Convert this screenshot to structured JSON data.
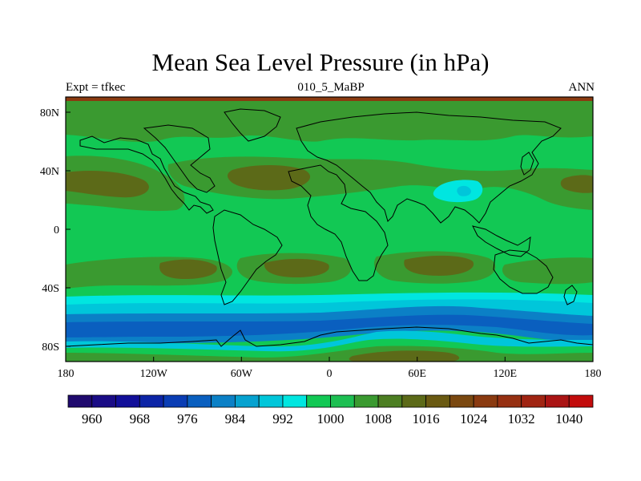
{
  "title": "Mean Sea Level Pressure (in hPa)",
  "subtitle_left": "Expt = tfkec",
  "subtitle_center": "010_5_MaBP",
  "subtitle_right": "ANN",
  "x_ticks": [
    "180",
    "120W",
    "60W",
    "0",
    "60E",
    "120E",
    "180"
  ],
  "y_ticks": [
    "80N",
    "40N",
    "0",
    "40S",
    "80S"
  ],
  "colorbar": {
    "labels": [
      "960",
      "968",
      "976",
      "984",
      "992",
      "1000",
      "1008",
      "1016",
      "1024",
      "1032",
      "1040"
    ],
    "colors": [
      "#1f0a6e",
      "#1a0c86",
      "#120f99",
      "#0c24a6",
      "#0a3db4",
      "#0a5fbf",
      "#0b80c6",
      "#06a2d0",
      "#00c6da",
      "#00e6e0",
      "#12c854",
      "#1dbf52",
      "#3a9a30",
      "#4c7e22",
      "#5c6a18",
      "#6a5a12",
      "#7a4810",
      "#8a3a10",
      "#963012",
      "#a02412",
      "#aa1414",
      "#c20c0c"
    ]
  },
  "map_colors": {
    "deep_low": "#0a5fbf",
    "mid_low": "#0b80c6",
    "low": "#00c6da",
    "light_low": "#00e6e0",
    "normal": "#12c854",
    "mid_high": "#3a9a30",
    "high": "#5c6a18",
    "highest": "#6a5a12",
    "polar_top": "#8a3a10"
  }
}
